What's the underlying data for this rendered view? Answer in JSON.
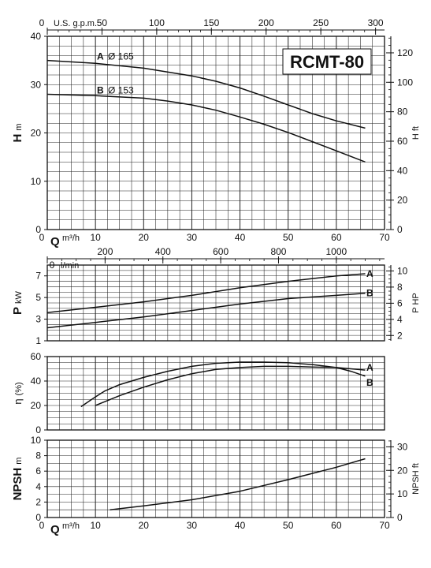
{
  "chart_data": [
    {
      "type": "line",
      "title": "RCMT-80",
      "xlabel": "Q",
      "x_unit": "m³/h",
      "xlim": [
        0,
        70
      ],
      "x_ticks": [
        "0",
        "10",
        "20",
        "30",
        "40",
        "50",
        "60",
        "70"
      ],
      "ylabel": "H",
      "y_unit": "m",
      "ylim": [
        0,
        40
      ],
      "y_ticks": [
        "0",
        "10",
        "20",
        "30",
        "40"
      ],
      "y2_label": "H ft",
      "y2_ticks": [
        "0",
        "20",
        "40",
        "60",
        "80",
        "100",
        "120"
      ],
      "x2_label": "U.S. g.p.m.",
      "x2_ticks": [
        "0",
        "50",
        "100",
        "150",
        "200",
        "250",
        "300"
      ],
      "grid": true,
      "series": [
        {
          "name": "A",
          "label": "Ø 165",
          "x": [
            0,
            10,
            20,
            30,
            35,
            40,
            45,
            50,
            55,
            60,
            66
          ],
          "y": [
            35,
            34.4,
            33.4,
            31.8,
            30.7,
            29.3,
            27.6,
            25.8,
            24.0,
            22.5,
            21
          ]
        },
        {
          "name": "B",
          "label": "Ø 153",
          "x": [
            0,
            10,
            20,
            25,
            30,
            35,
            40,
            45,
            50,
            55,
            60,
            66
          ],
          "y": [
            28,
            27.7,
            27.2,
            26.6,
            25.8,
            24.7,
            23.3,
            21.8,
            20.1,
            18.2,
            16.3,
            14
          ]
        }
      ]
    },
    {
      "type": "line",
      "xlabel": "",
      "xlim": [
        0,
        70
      ],
      "ylabel": "P",
      "y_unit": "kW",
      "ylim": [
        1,
        8
      ],
      "y_ticks": [
        "1",
        "3",
        "5",
        "7"
      ],
      "y2_label": "P HP",
      "y2_ticks": [
        "2",
        "4",
        "6",
        "8",
        "10"
      ],
      "x2_label": "l/min",
      "x2_ticks": [
        "0",
        "200",
        "400",
        "600",
        "800",
        "1000"
      ],
      "grid": true,
      "series": [
        {
          "name": "A",
          "x": [
            0,
            10,
            20,
            30,
            40,
            50,
            60,
            66
          ],
          "y": [
            3.6,
            4.1,
            4.6,
            5.2,
            5.9,
            6.5,
            7.0,
            7.2
          ]
        },
        {
          "name": "B",
          "x": [
            0,
            10,
            20,
            30,
            40,
            50,
            60,
            66
          ],
          "y": [
            2.2,
            2.7,
            3.2,
            3.8,
            4.4,
            4.9,
            5.2,
            5.4
          ]
        }
      ]
    },
    {
      "type": "line",
      "xlabel": "",
      "xlim": [
        0,
        70
      ],
      "ylabel": "η",
      "y_unit": "(%)",
      "ylim": [
        0,
        60
      ],
      "y_ticks": [
        "0",
        "20",
        "40",
        "60"
      ],
      "grid": true,
      "series": [
        {
          "name": "A",
          "x": [
            7,
            10,
            12,
            15,
            20,
            25,
            30,
            35,
            40,
            45,
            50,
            55,
            60,
            63,
            66
          ],
          "y": [
            19,
            27,
            32,
            37,
            43,
            48,
            52,
            54.5,
            55.5,
            55.5,
            55,
            53.5,
            51,
            48,
            44
          ]
        },
        {
          "name": "B",
          "x": [
            10,
            15,
            20,
            25,
            30,
            35,
            40,
            45,
            50,
            55,
            60,
            63,
            66
          ],
          "y": [
            20,
            28,
            35,
            41,
            46,
            49.5,
            51,
            52,
            52,
            51.5,
            51,
            50,
            49
          ]
        }
      ]
    },
    {
      "type": "line",
      "xlabel": "Q",
      "x_unit": "m³/h",
      "xlim": [
        0,
        70
      ],
      "x_ticks": [
        "0",
        "10",
        "20",
        "30",
        "40",
        "50",
        "60",
        "70"
      ],
      "ylabel": "NPSH",
      "y_unit": "m",
      "ylim": [
        0,
        10
      ],
      "y_ticks": [
        "0",
        "2",
        "4",
        "6",
        "8",
        "10"
      ],
      "y2_label": "NPSH ft",
      "y2_ticks": [
        "0",
        "10",
        "20",
        "30"
      ],
      "grid": true,
      "series": [
        {
          "x": [
            13,
            20,
            30,
            40,
            50,
            60,
            66
          ],
          "y": [
            1.0,
            1.5,
            2.3,
            3.4,
            4.9,
            6.5,
            7.6
          ]
        }
      ]
    }
  ]
}
